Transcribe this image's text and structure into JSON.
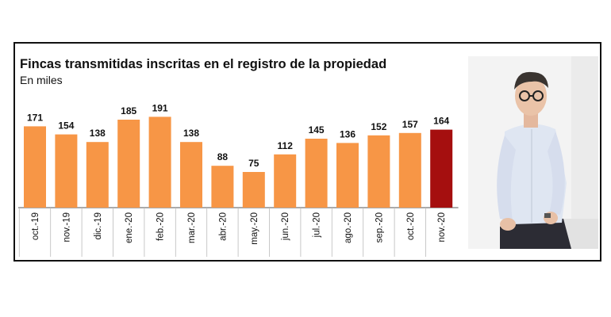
{
  "chart_data": {
    "type": "bar",
    "title": "Fincas transmitidas inscritas en el registro de la propiedad",
    "subtitle": "En miles",
    "categories": [
      "oct.-19",
      "nov.-19",
      "dic.-19",
      "ene.-20",
      "feb.-20",
      "mar.-20",
      "abr.-20",
      "may.-20",
      "jun.-20",
      "jul.-20",
      "ago.-20",
      "sep.-20",
      "oct.-20",
      "nov.-20"
    ],
    "values": [
      171,
      154,
      138,
      185,
      191,
      138,
      88,
      75,
      112,
      145,
      136,
      152,
      157,
      164
    ],
    "highlight_index": 13,
    "ylim": [
      0,
      200
    ],
    "grid": false,
    "legend": "none",
    "colors": {
      "bar": "#f79646",
      "highlight": "#a50f0f",
      "axis": "#555555",
      "text": "#111111"
    }
  },
  "photo": {
    "icon": "person-portrait-photo"
  }
}
